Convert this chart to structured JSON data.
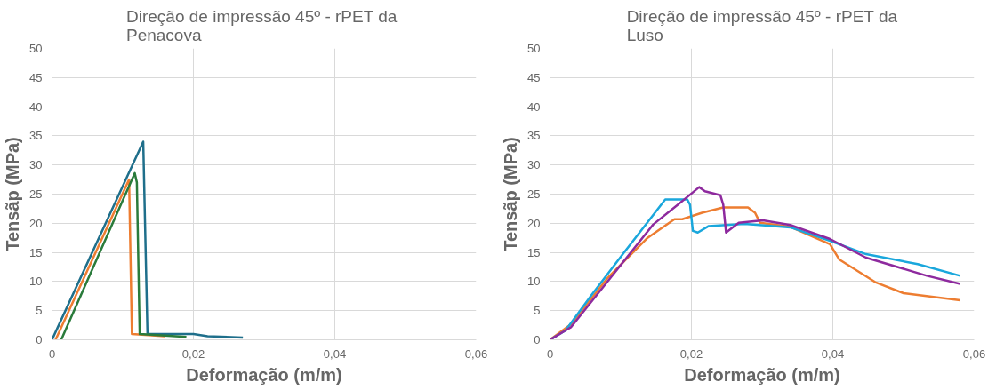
{
  "chart_data": [
    {
      "type": "line",
      "title": "Direção de impressão 45º  - rPET da Penacova",
      "xlabel": "Deformação (m/m)",
      "ylabel": "Tensãp (MPa)",
      "xlim": [
        0,
        0.06
      ],
      "xticks": [
        0,
        {
          "value": 0.02,
          "label": "0,02"
        },
        {
          "value": 0.04,
          "label": "0,04"
        },
        {
          "value": 0.06,
          "label": "0,06"
        }
      ],
      "ylim": [
        0,
        50
      ],
      "yticks": [
        0,
        5,
        10,
        15,
        20,
        25,
        30,
        35,
        40,
        45,
        50
      ],
      "grid": true,
      "series": [
        {
          "color": "#1f6f8b",
          "x": [
            0,
            0.0129,
            0.0135,
            0.02,
            0.022,
            0.027
          ],
          "values": [
            0,
            34,
            1,
            1,
            0.6,
            0.4
          ]
        },
        {
          "color": "#ed7d31",
          "x": [
            0.0005,
            0.0109,
            0.0113,
            0.016
          ],
          "values": [
            0,
            27.5,
            1,
            0.6
          ]
        },
        {
          "color": "#2a7b3b",
          "x": [
            0.0013,
            0.0117,
            0.012,
            0.0124,
            0.019
          ],
          "values": [
            0,
            28.6,
            27,
            1,
            0.5
          ]
        }
      ]
    },
    {
      "type": "line",
      "title": "Direção de impressão 45º - rPET da Luso",
      "xlabel": "Deformação (m/m)",
      "ylabel": "Tensãp (MPa)",
      "xlim": [
        0,
        0.06
      ],
      "xticks": [
        0,
        {
          "value": 0.02,
          "label": "0,02"
        },
        {
          "value": 0.04,
          "label": "0,04"
        },
        {
          "value": 0.06,
          "label": "0,06"
        }
      ],
      "ylim": [
        0,
        50
      ],
      "yticks": [
        0,
        5,
        10,
        15,
        20,
        25,
        30,
        35,
        40,
        45,
        50
      ],
      "grid": true,
      "series": [
        {
          "color": "#ed7d31",
          "x": [
            0,
            0.003,
            0.0082,
            0.0138,
            0.0176,
            0.0187,
            0.0215,
            0.0245,
            0.028,
            0.029,
            0.0297,
            0.034,
            0.0396,
            0.0409,
            0.046,
            0.05,
            0.058
          ],
          "values": [
            0,
            2.7,
            10.7,
            17.5,
            20.7,
            20.7,
            21.8,
            22.7,
            22.7,
            21.8,
            20.1,
            19.4,
            16.4,
            13.8,
            9.9,
            8,
            6.8
          ]
        },
        {
          "color": "#1aa7dc",
          "x": [
            0,
            0.0022,
            0.006,
            0.0103,
            0.0163,
            0.0194,
            0.0198,
            0.0202,
            0.0209,
            0.0224,
            0.0275,
            0.034,
            0.0396,
            0.0447,
            0.052,
            0.058
          ],
          "values": [
            0,
            1.6,
            7.9,
            14.7,
            24.1,
            24.1,
            23.2,
            18.7,
            18.4,
            19.5,
            19.9,
            19.3,
            17,
            14.7,
            13,
            11
          ]
        },
        {
          "color": "#8e2a9e",
          "x": [
            0,
            0.0022,
            0.003,
            0.0082,
            0.0146,
            0.0181,
            0.0211,
            0.0219,
            0.0241,
            0.0245,
            0.0249,
            0.0267,
            0.0301,
            0.034,
            0.0396,
            0.0447,
            0.0533,
            0.058
          ],
          "values": [
            0,
            1.6,
            2.2,
            10.1,
            19.8,
            23.2,
            26.2,
            25.5,
            24.8,
            23.2,
            18.4,
            20.1,
            20.5,
            19.7,
            17.3,
            14.1,
            11,
            9.6
          ]
        }
      ]
    }
  ]
}
